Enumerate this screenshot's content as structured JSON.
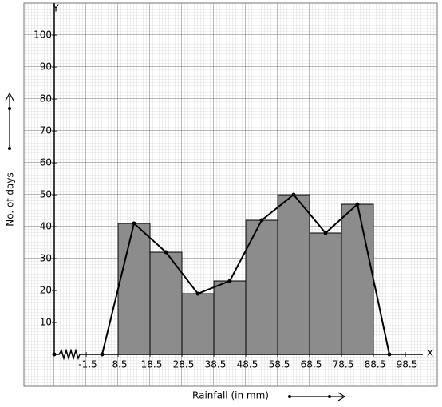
{
  "chart_data": {
    "type": "histogram",
    "x_label": "Rainfall (in mm)",
    "y_label": "No. of days",
    "x_axis_name": "X",
    "y_axis_name": "Y",
    "bins": [
      8.5,
      18.5,
      28.5,
      38.5,
      48.5,
      58.5,
      68.5,
      78.5,
      88.5
    ],
    "values": [
      41,
      32,
      19,
      23,
      42,
      50,
      38,
      47
    ],
    "color": "#8c8c8c",
    "polygon": {
      "x": [
        3.5,
        13.5,
        23.5,
        33.5,
        43.5,
        53.5,
        63.5,
        73.5,
        83.5,
        93.5
      ],
      "values": [
        0,
        41,
        32,
        19,
        23,
        42,
        50,
        38,
        47,
        0
      ],
      "color": "#000000"
    },
    "xlim": [
      -21,
      108.5
    ],
    "ylim": [
      -10,
      110
    ],
    "xticks": [
      -1.5,
      8.5,
      18.5,
      28.5,
      38.5,
      48.5,
      58.5,
      68.5,
      78.5,
      88.5,
      98.5
    ],
    "yticks": [
      10,
      20,
      30,
      40,
      50,
      60,
      70,
      80,
      90,
      100
    ],
    "grid": true
  }
}
